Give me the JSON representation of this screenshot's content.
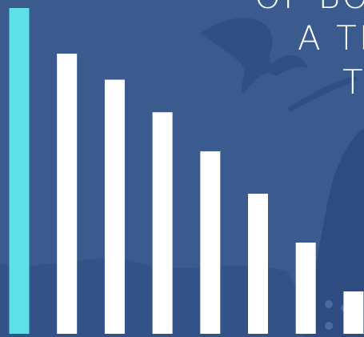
{
  "chart_data": {
    "type": "bar",
    "texts": [
      "OF BOO",
      "A TR",
      "T"
    ],
    "categories": [
      null,
      null,
      null,
      null,
      null,
      null,
      null,
      null
    ],
    "values": [
      100,
      86,
      78,
      68,
      56,
      43,
      28,
      13
    ],
    "colors": [
      "#5ee0e6",
      "#ffffff",
      "#ffffff",
      "#ffffff",
      "#ffffff",
      "#ffffff",
      "#ffffff",
      "#ffffff"
    ],
    "ylim": [
      0,
      100
    ]
  }
}
